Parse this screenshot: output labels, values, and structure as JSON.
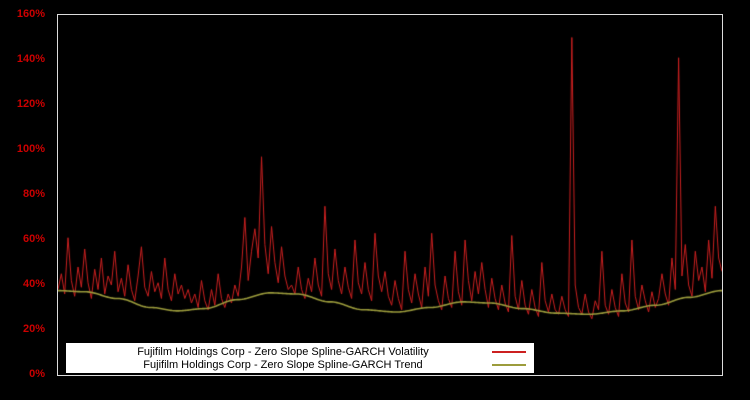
{
  "chart_data": {
    "type": "line",
    "title": "",
    "xlabel": "",
    "ylabel": "",
    "ylim": [
      0,
      160
    ],
    "yticks": [
      "0%",
      "20%",
      "40%",
      "60%",
      "80%",
      "100%",
      "120%",
      "140%",
      "160%"
    ],
    "ytick_values": [
      0,
      20,
      40,
      60,
      80,
      100,
      120,
      140,
      160
    ],
    "grid": "off",
    "background": "#000000",
    "plot_border_color": "#dcdcdc",
    "tick_label_color": "#cc0000",
    "legend_position": "bottom-inside",
    "series": [
      {
        "name": "Fujifilm Holdings Corp - Zero Slope Spline-GARCH Volatility",
        "color": "#cc2020",
        "unit": "percent",
        "values": [
          38,
          45,
          36,
          61,
          42,
          35,
          48,
          39,
          56,
          41,
          34,
          47,
          38,
          52,
          36,
          44,
          40,
          55,
          37,
          43,
          35,
          49,
          38,
          33,
          44,
          57,
          39,
          35,
          46,
          37,
          41,
          34,
          52,
          38,
          33,
          45,
          36,
          40,
          34,
          38,
          32,
          36,
          30,
          42,
          33,
          29,
          38,
          31,
          45,
          34,
          30,
          36,
          32,
          40,
          35,
          48,
          70,
          42,
          55,
          65,
          52,
          97,
          58,
          45,
          66,
          50,
          41,
          57,
          44,
          38,
          40,
          36,
          48,
          38,
          34,
          43,
          37,
          52,
          40,
          35,
          75,
          45,
          38,
          56,
          42,
          36,
          48,
          39,
          34,
          60,
          41,
          36,
          50,
          38,
          33,
          63,
          44,
          37,
          46,
          35,
          31,
          42,
          34,
          29,
          55,
          38,
          32,
          45,
          36,
          30,
          48,
          35,
          63,
          40,
          33,
          29,
          44,
          34,
          30,
          55,
          37,
          31,
          60,
          42,
          33,
          46,
          36,
          50,
          38,
          30,
          43,
          34,
          29,
          40,
          32,
          28,
          62,
          35,
          29,
          42,
          31,
          27,
          38,
          30,
          26,
          50,
          33,
          28,
          36,
          29,
          27,
          35,
          29,
          26,
          150,
          40,
          30,
          27,
          36,
          28,
          25,
          33,
          29,
          55,
          31,
          27,
          38,
          30,
          26,
          45,
          32,
          28,
          60,
          35,
          29,
          40,
          33,
          28,
          37,
          30,
          34,
          45,
          36,
          31,
          52,
          38,
          141,
          44,
          58,
          40,
          35,
          55,
          42,
          48,
          37,
          60,
          43,
          75,
          52,
          46
        ]
      },
      {
        "name": "Fujifilm Holdings Corp - Zero Slope Spline-GARCH Trend",
        "color": "#9c9c3c",
        "unit": "percent",
        "control_points": [
          {
            "x": 0.0,
            "y": 37.5
          },
          {
            "x": 0.04,
            "y": 37.0
          },
          {
            "x": 0.09,
            "y": 34.0
          },
          {
            "x": 0.14,
            "y": 30.0
          },
          {
            "x": 0.18,
            "y": 28.5
          },
          {
            "x": 0.22,
            "y": 29.5
          },
          {
            "x": 0.27,
            "y": 33.5
          },
          {
            "x": 0.32,
            "y": 36.5
          },
          {
            "x": 0.36,
            "y": 36.0
          },
          {
            "x": 0.41,
            "y": 32.5
          },
          {
            "x": 0.46,
            "y": 29.0
          },
          {
            "x": 0.51,
            "y": 28.0
          },
          {
            "x": 0.56,
            "y": 30.0
          },
          {
            "x": 0.61,
            "y": 32.5
          },
          {
            "x": 0.65,
            "y": 32.0
          },
          {
            "x": 0.7,
            "y": 29.5
          },
          {
            "x": 0.75,
            "y": 27.5
          },
          {
            "x": 0.8,
            "y": 27.0
          },
          {
            "x": 0.85,
            "y": 28.5
          },
          {
            "x": 0.9,
            "y": 31.0
          },
          {
            "x": 0.95,
            "y": 34.5
          },
          {
            "x": 1.0,
            "y": 37.5
          }
        ]
      }
    ]
  }
}
